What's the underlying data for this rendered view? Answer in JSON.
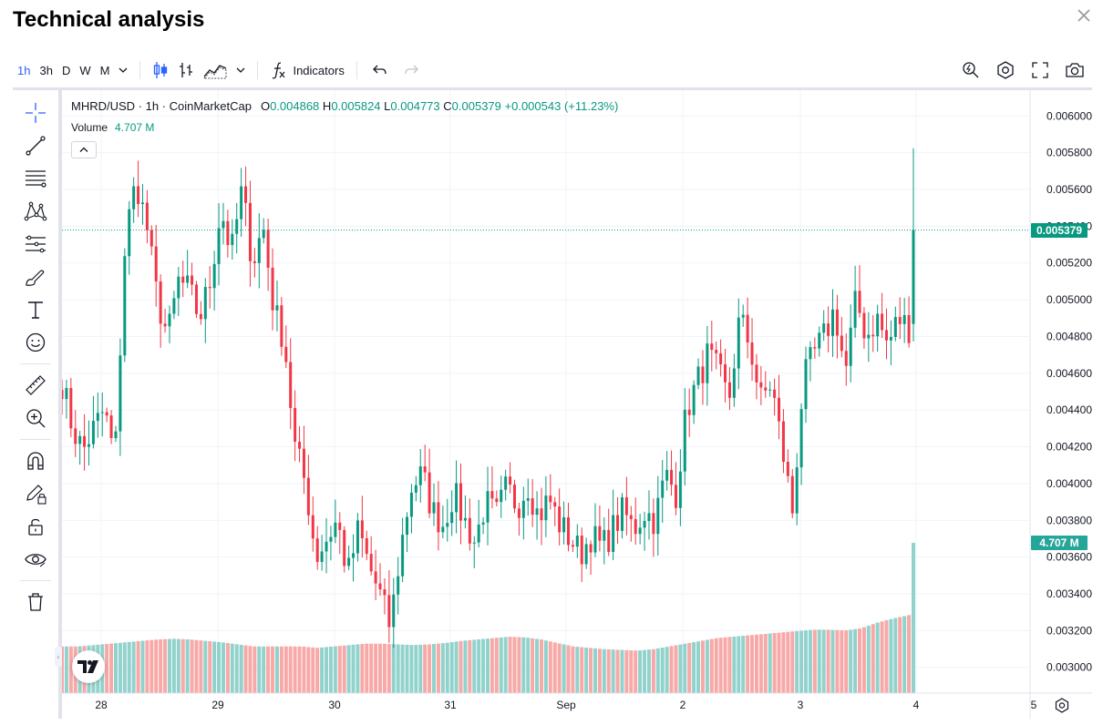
{
  "dialog": {
    "title": "Technical analysis"
  },
  "toolbar": {
    "intervals": [
      "1h",
      "3h",
      "D",
      "W",
      "M"
    ],
    "active_interval": "1h",
    "indicators_label": "Indicators"
  },
  "legend": {
    "symbol": "MHRD/USD · 1h · CoinMarketCap",
    "open_label": "O",
    "open": "0.004868",
    "high_label": "H",
    "high": "0.005824",
    "low_label": "L",
    "low": "0.004773",
    "close_label": "C",
    "close": "0.005379",
    "change": "+0.000543 (+11.23%)",
    "volume_label": "Volume",
    "volume_value": "4.707 M"
  },
  "price_scale": {
    "labels": [
      "0.006000",
      "0.005800",
      "0.005600",
      "0.005400",
      "0.005200",
      "0.005000",
      "0.004800",
      "0.004600",
      "0.004400",
      "0.004200",
      "0.004000",
      "0.003800",
      "0.003600",
      "0.003400",
      "0.003200",
      "0.003000"
    ],
    "current_price_tag": "0.005379",
    "volume_tag": "4.707 M"
  },
  "time_scale": {
    "labels": [
      "28",
      "29",
      "30",
      "31",
      "Sep",
      "2",
      "3",
      "4",
      "5"
    ]
  },
  "colors": {
    "up": "#089981",
    "down": "#f23645",
    "vol_up": "#92d2cc",
    "vol_down": "#f7a9a7",
    "accent": "#2962ff"
  },
  "chart_data": {
    "type": "candlestick",
    "symbol": "MHRD/USD",
    "interval": "1h",
    "ylim": [
      0.00286,
      0.00614
    ],
    "x_labels": [
      "28",
      "29",
      "30",
      "31",
      "Sep",
      "2",
      "3",
      "4",
      "5"
    ],
    "anchor_closes": [
      0.00455,
      0.0043,
      0.00418,
      0.0043,
      0.0044,
      0.00413,
      0.00535,
      0.00565,
      0.0054,
      0.005,
      0.0048,
      0.0051,
      0.00505,
      0.0049,
      0.0051,
      0.0055,
      0.00525,
      0.0056,
      0.0052,
      0.0054,
      0.00495,
      0.00478,
      0.0042,
      0.004,
      0.0036,
      0.0037,
      0.0038,
      0.0035,
      0.00375,
      0.00355,
      0.0034,
      0.00322,
      0.00365,
      0.00398,
      0.00405,
      0.00385,
      0.00378,
      0.00395,
      0.0038,
      0.00368,
      0.0039,
      0.00382,
      0.00398,
      0.00388,
      0.004,
      0.00382,
      0.00392,
      0.00378,
      0.0037,
      0.00362,
      0.00372,
      0.00365,
      0.00375,
      0.00385,
      0.00375,
      0.00385,
      0.0038,
      0.00405,
      0.00395,
      0.0044,
      0.00455,
      0.0047,
      0.0046,
      0.00445,
      0.0049,
      0.00475,
      0.00445,
      0.00455,
      0.0042,
      0.00385,
      0.00455,
      0.0047,
      0.0048,
      0.00495,
      0.0046,
      0.005,
      0.0048,
      0.0049,
      0.00475,
      0.0049,
      0.00485
    ],
    "volume_profile": [
      3.22,
      3.22,
      3.24,
      3.26,
      3.28,
      3.3,
      3.32,
      3.33,
      3.32,
      3.3,
      3.28,
      3.25,
      3.22,
      3.22,
      3.22,
      3.22,
      3.2,
      3.22,
      3.24,
      3.26,
      3.26,
      3.25,
      3.24,
      3.25,
      3.27,
      3.3,
      3.32,
      3.34,
      3.36,
      3.35,
      3.32,
      3.27,
      3.22,
      3.2,
      3.18,
      3.17,
      3.16,
      3.18,
      3.22,
      3.26,
      3.3,
      3.34,
      3.36,
      3.38,
      3.4,
      3.42,
      3.44,
      3.46,
      3.46,
      3.45,
      3.48,
      3.56,
      3.62,
      3.67
    ],
    "last_candle": {
      "open": 0.004868,
      "high": 0.005824,
      "low": 0.004773,
      "close": 0.005379
    },
    "last_volume": 4.707,
    "current_price": 0.005379
  }
}
